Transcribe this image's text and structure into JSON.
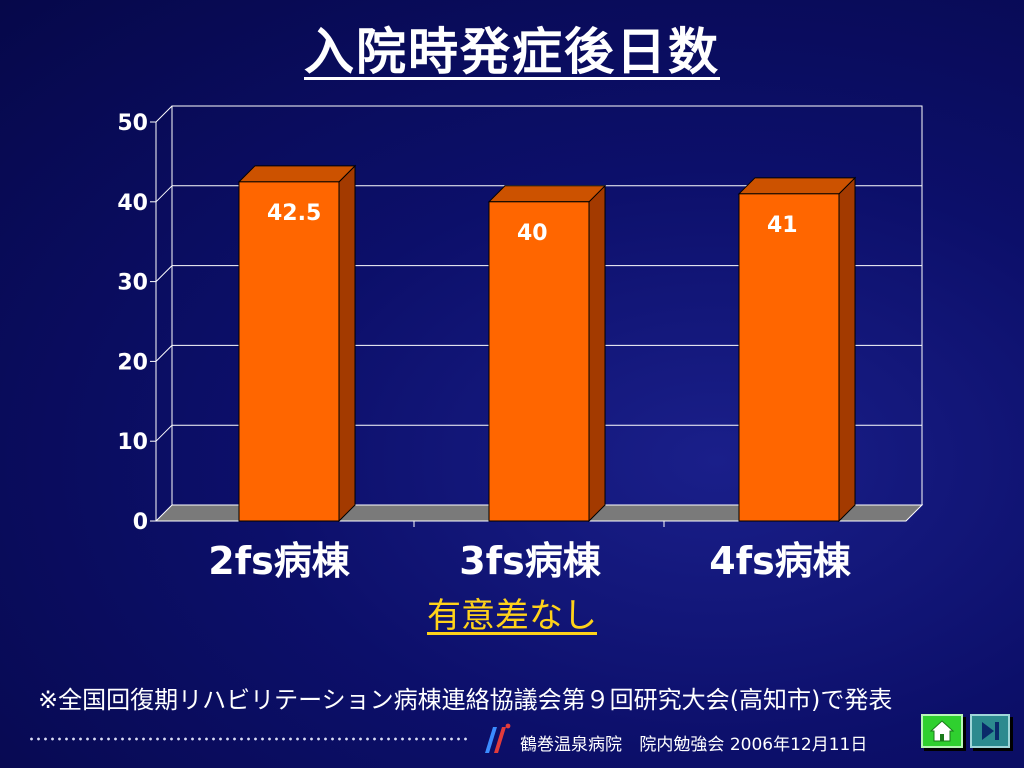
{
  "title": "入院時発症後日数",
  "chart_data": {
    "type": "bar",
    "categories": [
      "2fs病棟",
      "3fs病棟",
      "4fs病棟"
    ],
    "values": [
      42.5,
      40,
      41
    ],
    "data_labels": [
      "42.5",
      "40",
      "41"
    ],
    "ylim": [
      0,
      50
    ],
    "yticks": [
      "0",
      "10",
      "20",
      "30",
      "40",
      "50"
    ],
    "grid": true,
    "style": "3d",
    "colors": {
      "bar_front": "#ff6600",
      "bar_side": "#a33a00",
      "bar_top": "#cc5200"
    }
  },
  "note": "有意差なし",
  "footnote": "※全国回復期リハビリテーション病棟連絡協議会第９回研究大会(高知市)で発表",
  "footer": {
    "hospital": "鶴巻温泉病院",
    "event": "院内勉強会",
    "date": "2006年12月11日"
  },
  "nav": {
    "home_icon": "home-icon",
    "next_icon": "skip-next-icon"
  }
}
